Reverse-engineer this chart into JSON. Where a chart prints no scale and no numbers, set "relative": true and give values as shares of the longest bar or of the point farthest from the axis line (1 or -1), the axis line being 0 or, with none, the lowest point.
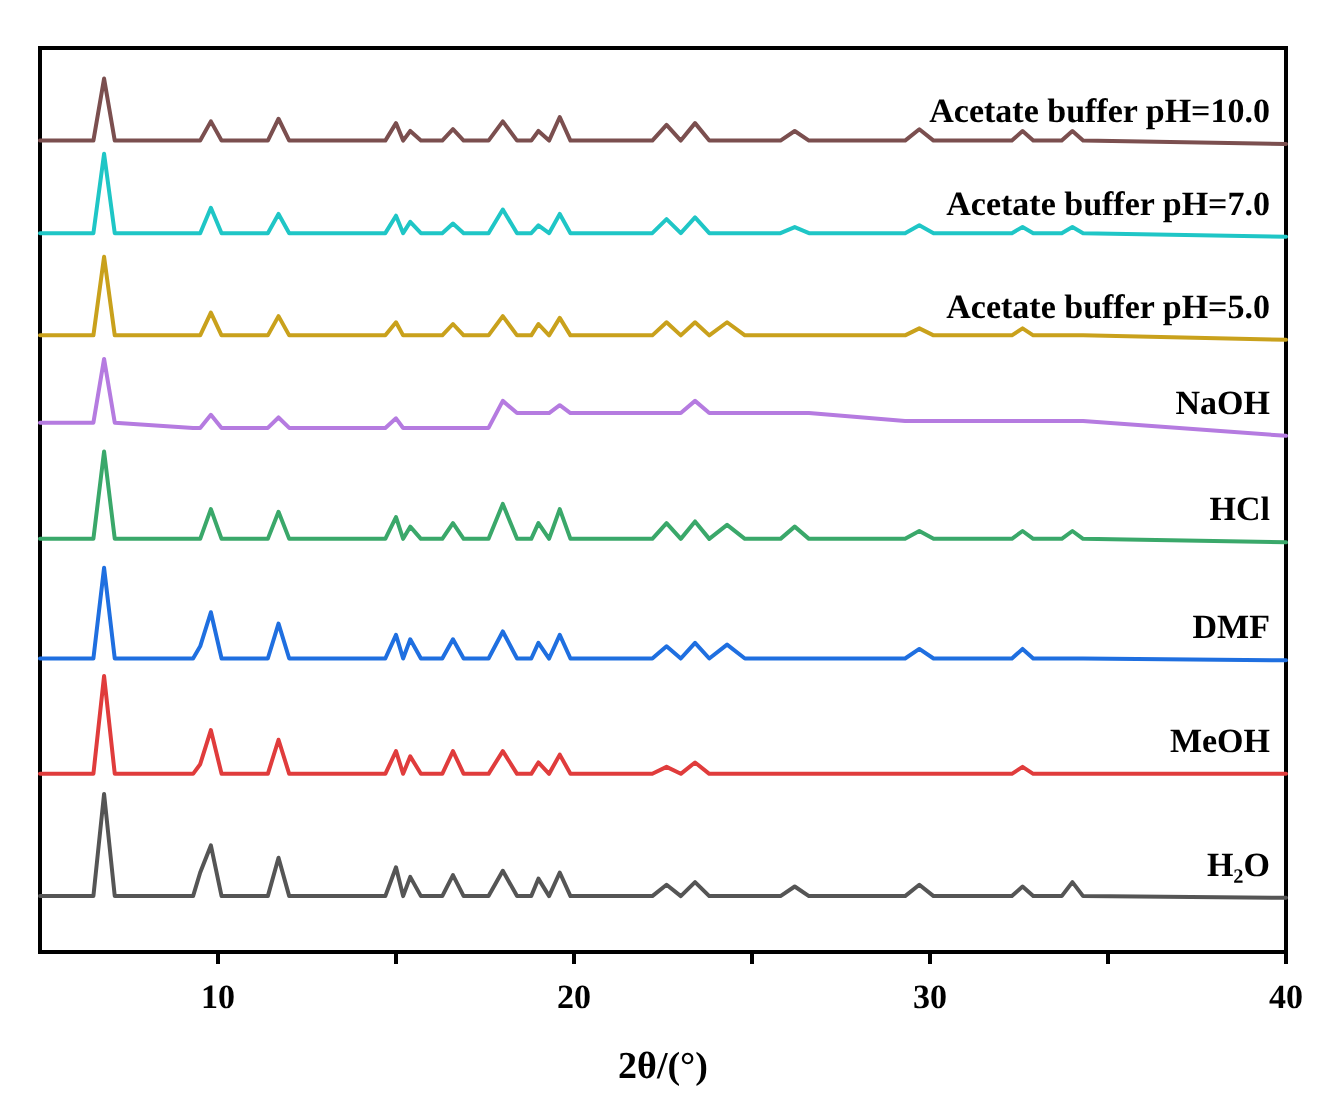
{
  "chart_data": {
    "type": "line",
    "relative": true,
    "xlabel": "2θ/(°)",
    "xlim": [
      5,
      40
    ],
    "xticks": [
      10,
      {
        "value": 15,
        "label": null
      },
      20,
      {
        "value": 25,
        "label": null
      },
      30,
      {
        "value": 35,
        "label": null
      },
      40
    ],
    "grid": false,
    "legend": false,
    "marker": "none",
    "line_style": "solid",
    "x": [
      5,
      6.5,
      6.8,
      7.1,
      9.3,
      9.5,
      9.8,
      10.1,
      11.4,
      11.7,
      12.0,
      14.7,
      15.0,
      15.2,
      15.4,
      15.7,
      16.3,
      16.6,
      16.9,
      17.6,
      18.0,
      18.4,
      18.8,
      19.0,
      19.3,
      19.6,
      19.9,
      22.2,
      22.6,
      23.0,
      23.4,
      23.8,
      24.3,
      24.8,
      25.8,
      26.2,
      26.6,
      29.3,
      29.7,
      30.1,
      32.3,
      32.6,
      32.9,
      33.7,
      34.0,
      34.3,
      40
    ],
    "series": [
      {
        "name": "Acetate buffer pH=10.0",
        "color": "#7b4f4f",
        "values": [
          0.929,
          0.929,
          1.0,
          0.929,
          0.929,
          0.929,
          0.951,
          0.929,
          0.929,
          0.954,
          0.929,
          0.929,
          0.949,
          0.929,
          0.94,
          0.929,
          0.929,
          0.942,
          0.929,
          0.929,
          0.951,
          0.929,
          0.929,
          0.94,
          0.929,
          0.956,
          0.929,
          0.929,
          0.947,
          0.929,
          0.949,
          0.929,
          0.929,
          0.929,
          0.929,
          0.94,
          0.929,
          0.929,
          0.942,
          0.929,
          0.929,
          0.94,
          0.929,
          0.929,
          0.94,
          0.929,
          0.925
        ]
      },
      {
        "name": "Acetate buffer pH=7.0",
        "color": "#1fc6c6",
        "values": [
          0.823,
          0.823,
          0.914,
          0.823,
          0.823,
          0.823,
          0.852,
          0.823,
          0.823,
          0.845,
          0.823,
          0.823,
          0.843,
          0.823,
          0.836,
          0.823,
          0.823,
          0.834,
          0.823,
          0.823,
          0.85,
          0.823,
          0.823,
          0.832,
          0.823,
          0.845,
          0.823,
          0.823,
          0.839,
          0.823,
          0.841,
          0.823,
          0.823,
          0.823,
          0.823,
          0.83,
          0.823,
          0.823,
          0.832,
          0.823,
          0.823,
          0.83,
          0.823,
          0.823,
          0.83,
          0.823,
          0.819
        ]
      },
      {
        "name": "Acetate buffer pH=5.0",
        "color": "#c9a11c",
        "values": [
          0.706,
          0.706,
          0.796,
          0.706,
          0.706,
          0.706,
          0.732,
          0.706,
          0.706,
          0.728,
          0.706,
          0.706,
          0.721,
          0.706,
          0.706,
          0.706,
          0.706,
          0.719,
          0.706,
          0.706,
          0.728,
          0.706,
          0.706,
          0.719,
          0.706,
          0.726,
          0.706,
          0.706,
          0.721,
          0.706,
          0.721,
          0.706,
          0.721,
          0.706,
          0.706,
          0.706,
          0.706,
          0.706,
          0.714,
          0.706,
          0.706,
          0.714,
          0.706,
          0.706,
          0.706,
          0.706,
          0.701
        ]
      },
      {
        "name": "NaOH",
        "color": "#b57be0",
        "values": [
          0.606,
          0.606,
          0.679,
          0.606,
          0.6,
          0.6,
          0.615,
          0.6,
          0.6,
          0.612,
          0.6,
          0.6,
          0.611,
          0.6,
          0.6,
          0.6,
          0.6,
          0.6,
          0.6,
          0.6,
          0.631,
          0.617,
          0.617,
          0.617,
          0.617,
          0.626,
          0.617,
          0.617,
          0.617,
          0.617,
          0.631,
          0.617,
          0.617,
          0.617,
          0.617,
          0.617,
          0.617,
          0.608,
          0.608,
          0.608,
          0.608,
          0.608,
          0.608,
          0.608,
          0.608,
          0.608,
          0.591
        ]
      },
      {
        "name": "HCl",
        "color": "#3aa86a",
        "values": [
          0.473,
          0.473,
          0.573,
          0.473,
          0.473,
          0.473,
          0.507,
          0.473,
          0.473,
          0.504,
          0.473,
          0.473,
          0.498,
          0.473,
          0.487,
          0.473,
          0.473,
          0.491,
          0.473,
          0.473,
          0.513,
          0.473,
          0.473,
          0.491,
          0.473,
          0.507,
          0.473,
          0.473,
          0.491,
          0.473,
          0.493,
          0.473,
          0.489,
          0.473,
          0.473,
          0.487,
          0.473,
          0.473,
          0.482,
          0.473,
          0.473,
          0.482,
          0.473,
          0.473,
          0.482,
          0.473,
          0.469
        ]
      },
      {
        "name": "DMF",
        "color": "#1f6fe0",
        "values": [
          0.336,
          0.336,
          0.44,
          0.336,
          0.336,
          0.35,
          0.389,
          0.336,
          0.336,
          0.376,
          0.336,
          0.336,
          0.363,
          0.336,
          0.358,
          0.336,
          0.336,
          0.358,
          0.336,
          0.336,
          0.367,
          0.336,
          0.336,
          0.354,
          0.336,
          0.363,
          0.336,
          0.336,
          0.35,
          0.336,
          0.354,
          0.336,
          0.352,
          0.336,
          0.336,
          0.336,
          0.336,
          0.336,
          0.347,
          0.336,
          0.336,
          0.347,
          0.336,
          0.336,
          0.336,
          0.336,
          0.334
        ]
      },
      {
        "name": "MeOH",
        "color": "#e03c3c",
        "values": [
          0.204,
          0.204,
          0.316,
          0.204,
          0.204,
          0.215,
          0.254,
          0.204,
          0.204,
          0.243,
          0.204,
          0.204,
          0.23,
          0.204,
          0.224,
          0.204,
          0.204,
          0.23,
          0.204,
          0.204,
          0.23,
          0.204,
          0.204,
          0.217,
          0.204,
          0.226,
          0.204,
          0.204,
          0.212,
          0.204,
          0.217,
          0.204,
          0.204,
          0.204,
          0.204,
          0.204,
          0.204,
          0.204,
          0.204,
          0.204,
          0.204,
          0.212,
          0.204,
          0.204,
          0.204,
          0.204,
          0.204
        ]
      },
      {
        "name": "H₂O",
        "color": "#555555",
        "values": [
          0.064,
          0.064,
          0.181,
          0.064,
          0.064,
          0.091,
          0.122,
          0.064,
          0.064,
          0.108,
          0.064,
          0.064,
          0.097,
          0.064,
          0.086,
          0.064,
          0.064,
          0.088,
          0.064,
          0.064,
          0.093,
          0.064,
          0.064,
          0.084,
          0.064,
          0.091,
          0.064,
          0.064,
          0.077,
          0.064,
          0.08,
          0.064,
          0.064,
          0.064,
          0.064,
          0.075,
          0.064,
          0.064,
          0.077,
          0.064,
          0.064,
          0.075,
          0.064,
          0.064,
          0.08,
          0.064,
          0.062
        ]
      }
    ]
  }
}
